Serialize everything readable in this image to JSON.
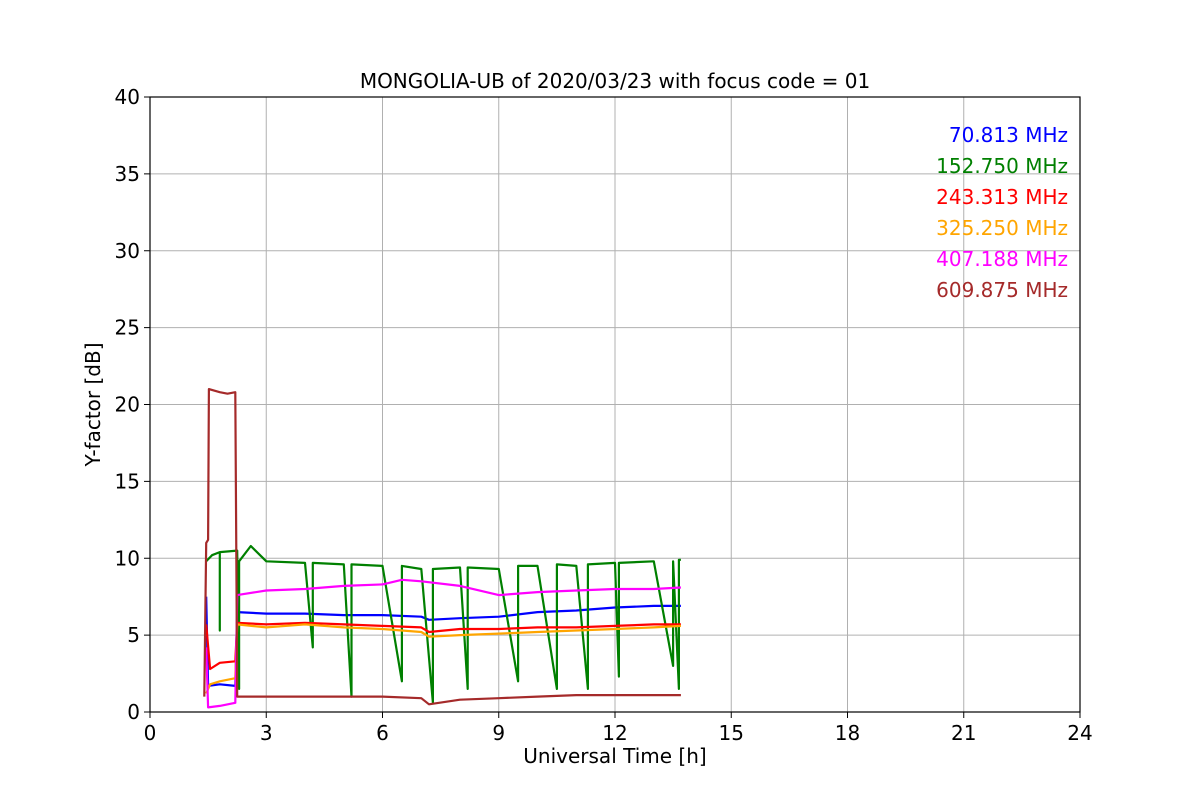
{
  "chart_data": {
    "type": "line",
    "title": "MONGOLIA-UB of 2020/03/23 with focus code = 01",
    "xlabel": "Universal Time [h]",
    "ylabel": "Y-factor [dB]",
    "xlim": [
      0,
      24
    ],
    "ylim": [
      0,
      40
    ],
    "xticks": [
      0,
      3,
      6,
      9,
      12,
      15,
      18,
      21,
      24
    ],
    "yticks": [
      0,
      5,
      10,
      15,
      20,
      25,
      30,
      35,
      40
    ],
    "grid": true,
    "legend_position": "top-right",
    "series": [
      {
        "name": "70.813 MHz",
        "color": "#0000ff",
        "points": [
          [
            1.45,
            7.5
          ],
          [
            1.5,
            1.7
          ],
          [
            1.8,
            1.8
          ],
          [
            2.2,
            1.7
          ],
          [
            2.25,
            6.5
          ],
          [
            3.0,
            6.4
          ],
          [
            4.0,
            6.4
          ],
          [
            5.0,
            6.3
          ],
          [
            6.0,
            6.3
          ],
          [
            7.0,
            6.2
          ],
          [
            7.2,
            6.0
          ],
          [
            8.0,
            6.1
          ],
          [
            9.0,
            6.2
          ],
          [
            10.0,
            6.5
          ],
          [
            11.0,
            6.6
          ],
          [
            12.0,
            6.8
          ],
          [
            13.0,
            6.9
          ],
          [
            13.7,
            6.9
          ]
        ]
      },
      {
        "name": "152.750 MHz",
        "color": "#008000",
        "points": [
          [
            1.45,
            9.8
          ],
          [
            1.6,
            10.2
          ],
          [
            1.8,
            10.4
          ],
          [
            1.8,
            5.3
          ],
          [
            1.8,
            10.4
          ],
          [
            2.25,
            10.5
          ],
          [
            2.3,
            1.5
          ],
          [
            2.3,
            9.8
          ],
          [
            2.6,
            10.8
          ],
          [
            3.0,
            9.8
          ],
          [
            4.0,
            9.7
          ],
          [
            4.2,
            4.2
          ],
          [
            4.2,
            9.7
          ],
          [
            5.0,
            9.6
          ],
          [
            5.2,
            1.0
          ],
          [
            5.2,
            9.6
          ],
          [
            6.0,
            9.5
          ],
          [
            6.5,
            2.0
          ],
          [
            6.5,
            9.5
          ],
          [
            7.0,
            9.3
          ],
          [
            7.3,
            0.6
          ],
          [
            7.3,
            9.3
          ],
          [
            8.0,
            9.4
          ],
          [
            8.2,
            1.5
          ],
          [
            8.2,
            9.4
          ],
          [
            9.0,
            9.3
          ],
          [
            9.5,
            2.0
          ],
          [
            9.5,
            9.5
          ],
          [
            10.0,
            9.5
          ],
          [
            10.5,
            1.5
          ],
          [
            10.5,
            9.6
          ],
          [
            11.0,
            9.5
          ],
          [
            11.3,
            1.5
          ],
          [
            11.3,
            9.6
          ],
          [
            12.0,
            9.7
          ],
          [
            12.1,
            2.3
          ],
          [
            12.1,
            9.7
          ],
          [
            13.0,
            9.8
          ],
          [
            13.5,
            3.0
          ],
          [
            13.5,
            9.8
          ],
          [
            13.65,
            1.5
          ],
          [
            13.65,
            9.9
          ],
          [
            13.7,
            9.9
          ]
        ]
      },
      {
        "name": "243.313 MHz",
        "color": "#ff0000",
        "points": [
          [
            1.45,
            5.7
          ],
          [
            1.55,
            2.8
          ],
          [
            1.8,
            3.2
          ],
          [
            2.2,
            3.3
          ],
          [
            2.25,
            5.8
          ],
          [
            3.0,
            5.7
          ],
          [
            4.0,
            5.8
          ],
          [
            5.0,
            5.7
          ],
          [
            6.0,
            5.6
          ],
          [
            7.0,
            5.5
          ],
          [
            7.2,
            5.2
          ],
          [
            8.0,
            5.4
          ],
          [
            9.0,
            5.4
          ],
          [
            10.0,
            5.5
          ],
          [
            11.0,
            5.5
          ],
          [
            12.0,
            5.6
          ],
          [
            13.0,
            5.7
          ],
          [
            13.7,
            5.7
          ]
        ]
      },
      {
        "name": "325.250 MHz",
        "color": "#ffa500",
        "points": [
          [
            1.45,
            1.2
          ],
          [
            1.55,
            1.8
          ],
          [
            1.8,
            2.0
          ],
          [
            2.2,
            2.2
          ],
          [
            2.25,
            5.7
          ],
          [
            3.0,
            5.5
          ],
          [
            4.0,
            5.7
          ],
          [
            5.0,
            5.5
          ],
          [
            6.0,
            5.4
          ],
          [
            7.0,
            5.2
          ],
          [
            7.2,
            4.9
          ],
          [
            8.0,
            5.0
          ],
          [
            9.0,
            5.1
          ],
          [
            10.0,
            5.2
          ],
          [
            11.0,
            5.3
          ],
          [
            12.0,
            5.4
          ],
          [
            13.0,
            5.5
          ],
          [
            13.7,
            5.6
          ]
        ]
      },
      {
        "name": "407.188 MHz",
        "color": "#ff00ff",
        "points": [
          [
            1.45,
            4.2
          ],
          [
            1.5,
            0.3
          ],
          [
            1.8,
            0.4
          ],
          [
            2.2,
            0.6
          ],
          [
            2.25,
            7.6
          ],
          [
            3.0,
            7.9
          ],
          [
            4.0,
            8.0
          ],
          [
            5.0,
            8.2
          ],
          [
            6.0,
            8.3
          ],
          [
            6.5,
            8.6
          ],
          [
            7.0,
            8.5
          ],
          [
            8.0,
            8.2
          ],
          [
            9.0,
            7.6
          ],
          [
            10.0,
            7.8
          ],
          [
            11.0,
            7.9
          ],
          [
            12.0,
            8.0
          ],
          [
            13.0,
            8.0
          ],
          [
            13.7,
            8.1
          ]
        ]
      },
      {
        "name": "609.875 MHz",
        "color": "#a52a2a",
        "points": [
          [
            1.4,
            1.0
          ],
          [
            1.45,
            11.0
          ],
          [
            1.5,
            11.2
          ],
          [
            1.52,
            21.0
          ],
          [
            1.8,
            20.8
          ],
          [
            2.0,
            20.7
          ],
          [
            2.2,
            20.8
          ],
          [
            2.25,
            1.0
          ],
          [
            3.0,
            1.0
          ],
          [
            4.0,
            1.0
          ],
          [
            5.0,
            1.0
          ],
          [
            6.0,
            1.0
          ],
          [
            7.0,
            0.9
          ],
          [
            7.2,
            0.5
          ],
          [
            8.0,
            0.8
          ],
          [
            9.0,
            0.9
          ],
          [
            10.0,
            1.0
          ],
          [
            11.0,
            1.1
          ],
          [
            12.0,
            1.1
          ],
          [
            13.0,
            1.1
          ],
          [
            13.7,
            1.1
          ]
        ]
      }
    ]
  }
}
